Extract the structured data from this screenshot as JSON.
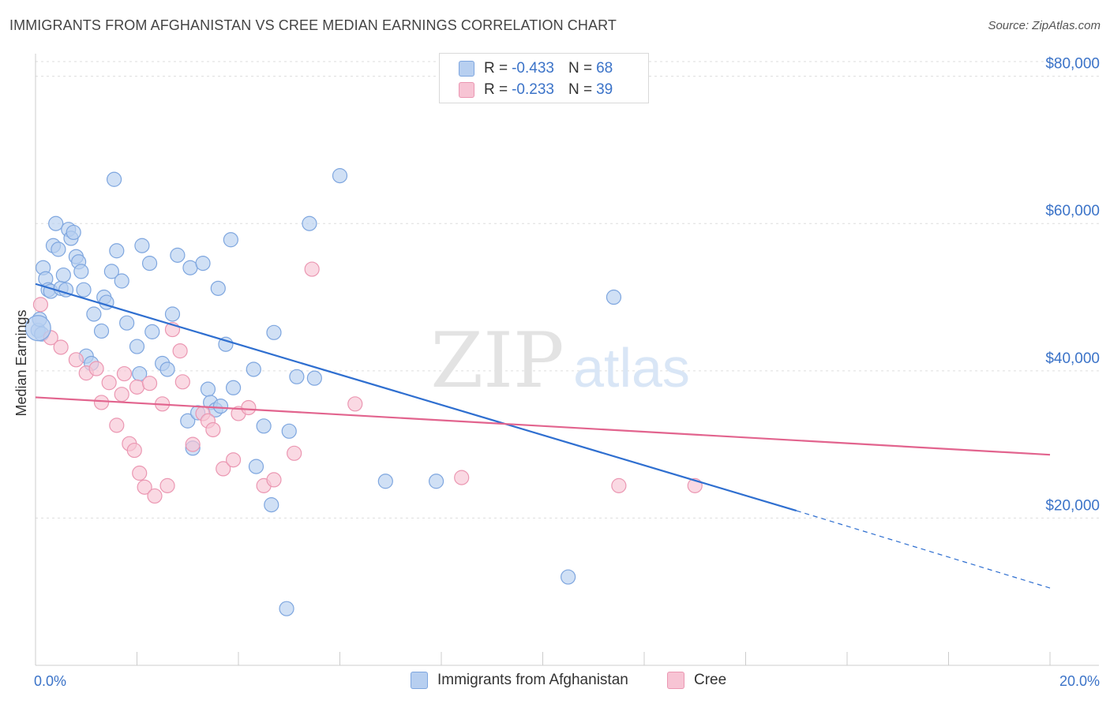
{
  "title": "IMMIGRANTS FROM AFGHANISTAN VS CREE MEDIAN EARNINGS CORRELATION CHART",
  "source": "Source: ZipAtlas.com",
  "watermark": {
    "zip": "ZIP",
    "atlas": "atlas"
  },
  "colors": {
    "blue_fill": "#b7cff0",
    "blue_stroke": "#7ea6df",
    "blue_line": "#2f6fd0",
    "pink_fill": "#f7c4d4",
    "pink_stroke": "#eb97b2",
    "pink_line": "#e2648e",
    "axis_text": "#3b73c8",
    "grid": "#dddddd"
  },
  "legend": {
    "rows": [
      {
        "r_label": "R = ",
        "r_value": "-0.433",
        "n_label": "N = ",
        "n_value": "68"
      },
      {
        "r_label": "R = ",
        "r_value": "-0.233",
        "n_label": "N = ",
        "n_value": "39"
      }
    ]
  },
  "chart_data": {
    "type": "scatter",
    "title": "IMMIGRANTS FROM AFGHANISTAN VS CREE MEDIAN EARNINGS CORRELATION CHART",
    "xlabel": "",
    "ylabel": "Median Earnings",
    "xlim": [
      0,
      20
    ],
    "ylim": [
      0,
      82000
    ],
    "x_tick_labels": [
      "0.0%",
      "20.0%"
    ],
    "y_ticks": [
      20000,
      40000,
      60000,
      80000
    ],
    "y_tick_labels": [
      "$20,000",
      "$40,000",
      "$60,000",
      "$80,000"
    ],
    "grid": true,
    "legend_position": "top-center",
    "series": [
      {
        "name": "Immigrants from Afghanistan",
        "color": "#7ea6df",
        "x": [
          0.05,
          0.08,
          0.12,
          0.15,
          0.2,
          0.25,
          0.3,
          0.35,
          0.4,
          0.45,
          0.5,
          0.55,
          0.6,
          0.65,
          0.7,
          0.75,
          0.8,
          0.85,
          0.9,
          0.95,
          1.0,
          1.1,
          1.15,
          1.3,
          1.35,
          1.4,
          1.5,
          1.55,
          1.6,
          1.7,
          1.8,
          2.0,
          2.05,
          2.1,
          2.25,
          2.3,
          2.5,
          2.6,
          2.7,
          2.8,
          3.0,
          3.05,
          3.1,
          3.2,
          3.3,
          3.4,
          3.45,
          3.55,
          3.6,
          3.65,
          3.75,
          3.85,
          3.9,
          4.3,
          4.35,
          4.5,
          4.65,
          4.7,
          4.95,
          5.0,
          5.15,
          5.4,
          5.5,
          6.0,
          6.9,
          7.9,
          10.5,
          11.4
        ],
        "y": [
          45500,
          47000,
          45000,
          54000,
          52500,
          51000,
          50800,
          57000,
          60000,
          56500,
          51200,
          53000,
          51000,
          59200,
          58000,
          58800,
          55500,
          54800,
          53500,
          51000,
          42000,
          41000,
          47700,
          45400,
          50000,
          49300,
          53500,
          66000,
          56300,
          52200,
          46500,
          43300,
          39600,
          57000,
          54600,
          45300,
          41000,
          40200,
          47700,
          55700,
          33200,
          54000,
          29500,
          34300,
          54600,
          37500,
          35700,
          34700,
          51200,
          35200,
          43600,
          57800,
          37700,
          40200,
          27000,
          32500,
          21800,
          45200,
          7700,
          31800,
          39200,
          60000,
          39000,
          66500,
          25000,
          25000,
          12000,
          50000
        ]
      },
      {
        "name": "Cree",
        "color": "#eb97b2",
        "x": [
          0.1,
          0.3,
          0.5,
          0.8,
          1.0,
          1.2,
          1.3,
          1.45,
          1.6,
          1.7,
          1.75,
          1.85,
          1.95,
          2.0,
          2.05,
          2.15,
          2.25,
          2.35,
          2.5,
          2.6,
          2.7,
          2.85,
          2.9,
          3.1,
          3.3,
          3.4,
          3.5,
          3.7,
          3.9,
          4.0,
          4.2,
          4.5,
          4.7,
          5.1,
          5.45,
          6.3,
          8.4,
          11.5,
          13.0
        ],
        "y": [
          49000,
          44500,
          43200,
          41500,
          39700,
          40300,
          35700,
          38400,
          32600,
          36800,
          39600,
          30100,
          29200,
          37800,
          26100,
          24200,
          38300,
          23000,
          35500,
          24400,
          45600,
          42700,
          38500,
          30000,
          34200,
          33200,
          32000,
          26700,
          27900,
          34200,
          35000,
          24400,
          25200,
          28800,
          53800,
          35500,
          25500,
          24400,
          24400
        ]
      }
    ],
    "trend_lines": [
      {
        "series": "Immigrants from Afghanistan",
        "x": [
          0,
          15,
          20
        ],
        "y": [
          51800,
          21000,
          10500
        ],
        "dashed_from_x": 15
      },
      {
        "series": "Cree",
        "x": [
          0,
          20
        ],
        "y": [
          36400,
          28600
        ]
      }
    ]
  },
  "bottom_legend": [
    {
      "label": "Immigrants from Afghanistan"
    },
    {
      "label": "Cree"
    }
  ]
}
